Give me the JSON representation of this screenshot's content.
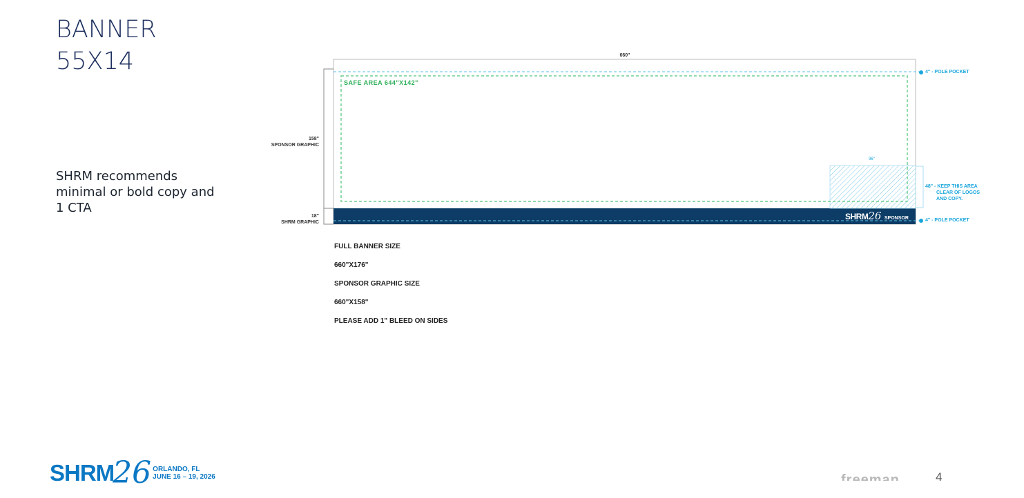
{
  "title": {
    "line1": "BANNER",
    "line2": "55X14"
  },
  "copy": {
    "line1": "SHRM recommends",
    "line2": "minimal or bold copy and",
    "line3": "1 CTA"
  },
  "diagram": {
    "width_label": "660\"",
    "sponsor_dim": "158\"",
    "sponsor_label": "SPONSOR GRAPHIC",
    "shrm_dim": "18\"",
    "shrm_label": "SHRM GRAPHIC",
    "safe_area": "SAFE AREA 644\"X142\"",
    "pole_pocket_top": "4\" - POLE POCKET",
    "pole_pocket_bottom": "4\" - POLE POCKET",
    "clear_width": "96\"",
    "clear_note": [
      "48\" - KEEP THIS AREA",
      "CLEAR OF LOGOS",
      "AND COPY."
    ],
    "band_logo": "SHRM",
    "band_logo_num": "26",
    "band_sponsor": "SPONSOR",
    "colors": {
      "band": "#0d3d66",
      "safe": "#2fb05a",
      "pocket": "#1aa6dc"
    }
  },
  "specs": {
    "full_label": "FULL BANNER SIZE",
    "full_value": "660\"X176\"",
    "sponsor_label": "SPONSOR GRAPHIC SIZE",
    "sponsor_value": "660\"X158\"",
    "bleed": "PLEASE ADD 1\" BLEED ON SIDES"
  },
  "footer": {
    "logo": "SHRM",
    "logo_num": "26",
    "city": "ORLANDO, FL",
    "dates": "JUNE 16 – 19, 2026",
    "partner": "freeman",
    "page": "4"
  }
}
